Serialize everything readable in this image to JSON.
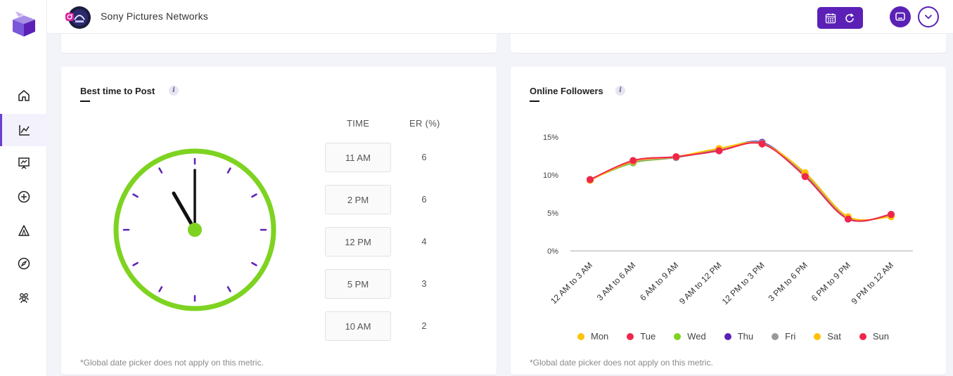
{
  "app": {
    "brand_name": "Sony Pictures Networks"
  },
  "sidebar": {
    "items": [
      {
        "name": "home",
        "icon": "home-icon"
      },
      {
        "name": "analytics",
        "icon": "line-chart-icon",
        "active": true
      },
      {
        "name": "reports",
        "icon": "presentation-icon"
      },
      {
        "name": "add",
        "icon": "plus-circle-icon"
      },
      {
        "name": "campaigns",
        "icon": "tent-icon"
      },
      {
        "name": "discover",
        "icon": "compass-icon"
      },
      {
        "name": "community",
        "icon": "people-icon"
      }
    ]
  },
  "topbar": {
    "calendar_icon": "calendar-icon",
    "refresh_icon": "refresh-icon",
    "chat_icon": "chat-icon",
    "dropdown_icon": "chevron-down-icon",
    "accent": "#5b21b6"
  },
  "best_time": {
    "title": "Best time to Post",
    "info": "i",
    "columns": {
      "time": "TIME",
      "er": "ER (%)"
    },
    "rows": [
      {
        "time": "11 AM",
        "er": "6"
      },
      {
        "time": "2 PM",
        "er": "6"
      },
      {
        "time": "12 PM",
        "er": "4"
      },
      {
        "time": "5 PM",
        "er": "3"
      },
      {
        "time": "10 AM",
        "er": "2"
      }
    ],
    "clock": {
      "hour": 11,
      "minute": 0,
      "ring_color": "#7ed321",
      "hand_color": "#111111",
      "tick_color": "#5b21b6"
    },
    "footnote": "*Global date picker does not apply on this metric."
  },
  "online_followers": {
    "title": "Online Followers",
    "info": "i",
    "footnote": "*Global date picker does not apply on this metric."
  },
  "chart_data": {
    "type": "line",
    "title": "Online Followers",
    "categories": [
      "12 AM to 3 AM",
      "3 AM to 6 AM",
      "6 AM to 9 AM",
      "9 AM to 12 PM",
      "12 PM to 3 PM",
      "3 PM to 6 PM",
      "6 PM to 9 PM",
      "9 PM to 12 AM"
    ],
    "yticks": [
      "0%",
      "5%",
      "10%",
      "15%"
    ],
    "ylim": [
      0,
      15
    ],
    "series": [
      {
        "name": "Mon",
        "color": "#ffc107",
        "values": [
          9.4,
          11.8,
          12.4,
          13.3,
          14.1,
          10.1,
          4.3,
          4.7
        ]
      },
      {
        "name": "Tue",
        "color": "#f0264b",
        "values": [
          9.3,
          11.9,
          12.4,
          13.2,
          14.1,
          9.9,
          4.2,
          4.8
        ]
      },
      {
        "name": "Wed",
        "color": "#7ed321",
        "values": [
          9.4,
          11.6,
          12.3,
          13.4,
          14.2,
          10.0,
          4.3,
          4.7
        ]
      },
      {
        "name": "Thu",
        "color": "#5b21b6",
        "values": [
          9.4,
          11.8,
          12.4,
          13.2,
          14.3,
          9.9,
          4.2,
          4.8
        ]
      },
      {
        "name": "Fri",
        "color": "#999999",
        "values": [
          9.4,
          11.7,
          12.3,
          13.3,
          14.2,
          10.0,
          4.3,
          4.7
        ]
      },
      {
        "name": "Sat",
        "color": "#ffc107",
        "values": [
          9.3,
          11.8,
          12.4,
          13.5,
          14.1,
          10.3,
          4.5,
          4.5
        ]
      },
      {
        "name": "Sun",
        "color": "#f0264b",
        "values": [
          9.4,
          11.9,
          12.4,
          13.2,
          14.1,
          9.8,
          4.2,
          4.8
        ]
      }
    ],
    "grid": false,
    "legend": "bottom"
  }
}
